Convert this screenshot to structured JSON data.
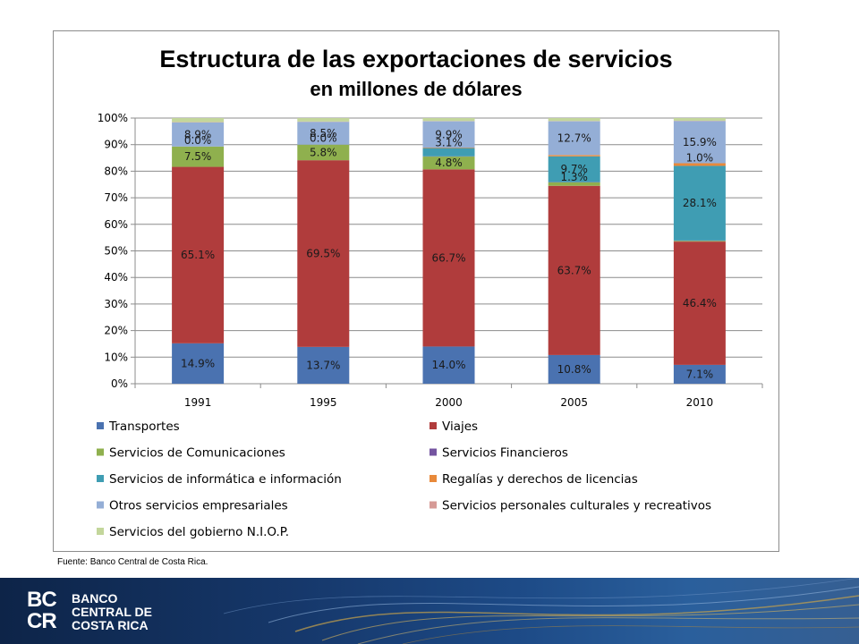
{
  "chart_data": {
    "type": "bar",
    "stacked": true,
    "percent_stacked": true,
    "title": "Estructura de las exportaciones de servicios",
    "subtitle": "en millones de dólares",
    "categories": [
      "1991",
      "1995",
      "2000",
      "2005",
      "2010"
    ],
    "ylim": [
      0,
      100
    ],
    "yticks": [
      "0%",
      "10%",
      "20%",
      "30%",
      "40%",
      "50%",
      "60%",
      "70%",
      "80%",
      "90%",
      "100%"
    ],
    "grid": true,
    "legend_position": "bottom",
    "series": [
      {
        "name": "Transportes",
        "color": "#4a72b0",
        "values": [
          14.9,
          13.7,
          14.0,
          10.8,
          7.1
        ],
        "labels": [
          "14.9%",
          "13.7%",
          "14.0%",
          "10.8%",
          "7.1%"
        ]
      },
      {
        "name": "Viajes",
        "color": "#b03c3c",
        "values": [
          65.1,
          69.5,
          66.7,
          63.7,
          46.4
        ],
        "labels": [
          "65.1%",
          "69.5%",
          "66.7%",
          "63.7%",
          "46.4%"
        ]
      },
      {
        "name": "Servicios de Comunicaciones",
        "color": "#8fb04e",
        "values": [
          7.5,
          5.8,
          4.8,
          1.3,
          0.3
        ],
        "labels": [
          "7.5%",
          "5.8%",
          "4.8%",
          "1.3%",
          ""
        ]
      },
      {
        "name": "Servicios Financieros",
        "color": "#7454a0",
        "values": [
          0.0,
          0.0,
          0.1,
          0.1,
          0.1
        ],
        "labels": [
          "0.0%",
          "0.0%",
          "",
          "",
          ""
        ]
      },
      {
        "name": "Servicios de informática e información",
        "color": "#3f9db3",
        "values": [
          0.0,
          0.0,
          3.1,
          9.7,
          28.1
        ],
        "labels": [
          "",
          "",
          "3.1%",
          "9.7%",
          "28.1%"
        ]
      },
      {
        "name": "Regalías y derechos de licencias",
        "color": "#e8893a",
        "values": [
          0.0,
          0.0,
          0.2,
          0.5,
          1.0
        ],
        "labels": [
          "",
          "",
          "",
          "",
          "1.0%"
        ]
      },
      {
        "name": "Otros servicios empresariales",
        "color": "#94aed6",
        "values": [
          8.9,
          8.5,
          9.9,
          12.7,
          15.9
        ],
        "labels": [
          "8.9%",
          "8.5%",
          "9.9%",
          "12.7%",
          "15.9%"
        ]
      },
      {
        "name": "Servicios personales culturales y recreativos",
        "color": "#d69a96",
        "values": [
          0.1,
          0.1,
          0.1,
          0.1,
          0.1
        ],
        "labels": [
          "",
          "",
          "",
          "",
          ""
        ]
      },
      {
        "name": "Servicios del gobierno N.I.O.P.",
        "color": "#c3d69b",
        "values": [
          1.5,
          1.3,
          1.1,
          1.1,
          1.0
        ],
        "labels": [
          "",
          "",
          "",
          "",
          ""
        ]
      }
    ]
  },
  "source": "Fuente: Banco Central de Costa Rica.",
  "logo": {
    "letters": [
      "BC",
      "CR"
    ],
    "name_lines": [
      "BANCO",
      "CENTRAL DE",
      "COSTA RICA"
    ]
  },
  "colors": {
    "footer_dark": "#0d2448",
    "footer_light": "#365f92",
    "gridline": "#8c8c8c"
  }
}
